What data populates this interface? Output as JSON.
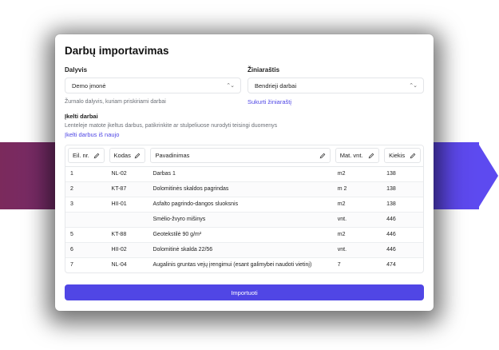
{
  "dialog": {
    "title": "Darbų importavimas"
  },
  "participant": {
    "label": "Dalyvis",
    "value": "Demo įmonė",
    "hint": "Žurnalo dalyvis, kuriam priskiriami darbai"
  },
  "catalog": {
    "label": "Žiniaraštis",
    "value": "Bendrieji darbai",
    "create_link": "Sukurti žiniaraštį"
  },
  "imported": {
    "title": "Įkelti darbai",
    "description": "Lenteleje matote įkeltus darbus, patikrinkite ar stulpeliuose nurodyti teisingi duomenys",
    "reupload_link": "Įkelti darbus iš naujo"
  },
  "table": {
    "headers": [
      "Eil. nr.",
      "Kodas",
      "Pavadinimas",
      "Mat. vnt.",
      "Kiekis"
    ],
    "rows": [
      [
        "1",
        "NL-02",
        "Darbas 1",
        "m2",
        "138"
      ],
      [
        "2",
        "KT-87",
        "Dolomitinės skaldos pagrindas",
        "m 2",
        "138"
      ],
      [
        "3",
        "HII-01",
        "Asfalto pagrindo-dangos sluoksnis",
        "m2",
        "138"
      ],
      [
        "",
        "",
        "Smėlio-žvyro mišinys",
        "vnt.",
        "446"
      ],
      [
        "5",
        "KT-88",
        "Geotekstilė 90 g/m²",
        "m2",
        "446"
      ],
      [
        "6",
        "HII-02",
        "Dolomitinė skalda 22/56",
        "vnt.",
        "446"
      ],
      [
        "7",
        "NL-04",
        "Augalinis gruntas vejų įrengimui (esant galimybei naudoti vietinį)",
        "7",
        "474"
      ]
    ]
  },
  "actions": {
    "import_label": "Importuoti"
  },
  "colors": {
    "accent": "#5046e5",
    "band_start": "#7b2a5c",
    "band_end": "#5d4af0"
  }
}
